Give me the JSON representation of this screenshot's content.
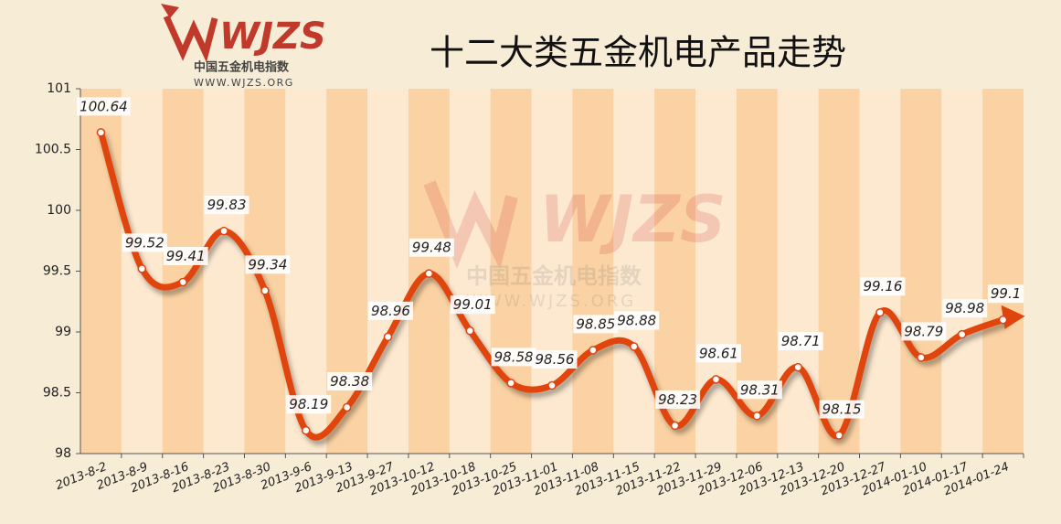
{
  "logo": {
    "mark": "WJZS",
    "name": "中国五金机电指数",
    "url": "WWW.WJZS.ORG"
  },
  "chart_data": {
    "type": "line",
    "title": "十二大类五金机电产品走势",
    "categories": [
      "2013-8-2",
      "2013-8-9",
      "2013-8-16",
      "2013-8-23",
      "2013-8-30",
      "2013-9-6",
      "2013-9-13",
      "2013-9-27",
      "2013-10-12",
      "2013-10-18",
      "2013-10-25",
      "2013-11-01",
      "2013-11-08",
      "2013-11-15",
      "2013-11-22",
      "2013-11-29",
      "2013-12-06",
      "2013-12-13",
      "2013-12-20",
      "2013-12-27",
      "2014-01-10",
      "2014-01-17",
      "2014-01-24"
    ],
    "values": [
      100.64,
      99.52,
      99.41,
      99.83,
      99.34,
      98.19,
      98.38,
      98.96,
      99.48,
      99.01,
      98.58,
      98.56,
      98.85,
      98.88,
      98.23,
      98.61,
      98.31,
      98.71,
      98.15,
      99.16,
      98.79,
      98.98,
      99.1
    ],
    "color": "#e0440e",
    "ylim": [
      98,
      101
    ],
    "yticks": [
      98,
      98.5,
      99,
      99.5,
      100,
      100.5,
      101
    ]
  }
}
